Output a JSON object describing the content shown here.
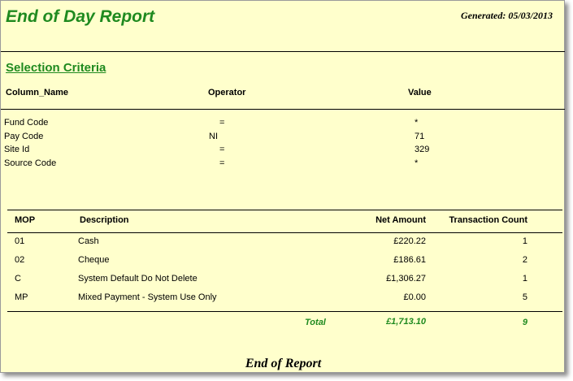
{
  "report": {
    "title": "End of Day Report",
    "generated": "Generated: 05/03/2013",
    "footer": "End of Report"
  },
  "criteria": {
    "section_title": "Selection Criteria",
    "headers": [
      "Column_Name",
      "Operator",
      "Value"
    ],
    "rows": [
      [
        "Fund Code",
        "=",
        "*"
      ],
      [
        "Pay Code",
        "NI",
        "71"
      ],
      [
        "Site Id",
        "=",
        "329"
      ],
      [
        "Source Code",
        "=",
        "*"
      ]
    ]
  },
  "summary": {
    "headers": [
      "MOP",
      "Description",
      "Net Amount",
      "Transaction Count"
    ],
    "rows": [
      [
        "01",
        "Cash",
        "£220.22",
        "1"
      ],
      [
        "02",
        "Cheque",
        "£186.61",
        "2"
      ],
      [
        "C",
        "System Default Do Not Delete",
        "£1,306.27",
        "1"
      ],
      [
        "MP",
        "Mixed Payment - System Use Only",
        "£0.00",
        "5"
      ]
    ],
    "total_label": "Total",
    "total_amount": "£1,713.10",
    "total_count": "9"
  },
  "colors": {
    "page_background": "#ffffcc",
    "accent_green": "#1f8a1f"
  }
}
